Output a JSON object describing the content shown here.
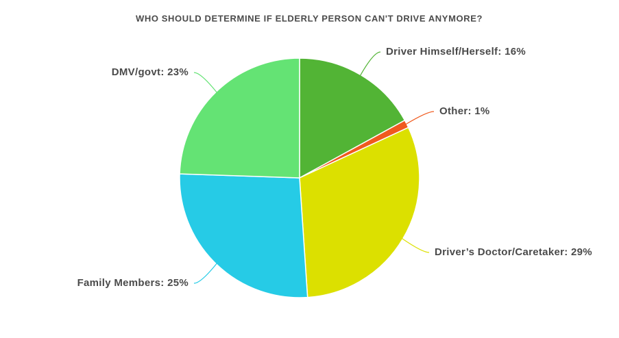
{
  "chart_data": {
    "type": "pie",
    "title": "WHO SHOULD DETERMINE IF ELDERLY PERSON CAN'T DRIVE ANYMORE?",
    "values": [
      16,
      1,
      29,
      25,
      23
    ],
    "value_labels": [
      "Driver Himself/Herself: 16%",
      "Other: 1%",
      "Driver’s Doctor/Caretaker: 29%",
      "Family Members: 25%",
      "DMV/govt: 23%"
    ],
    "colors": [
      "#52b435",
      "#f05a1e",
      "#dce000",
      "#26cbe6",
      "#64e374"
    ]
  }
}
